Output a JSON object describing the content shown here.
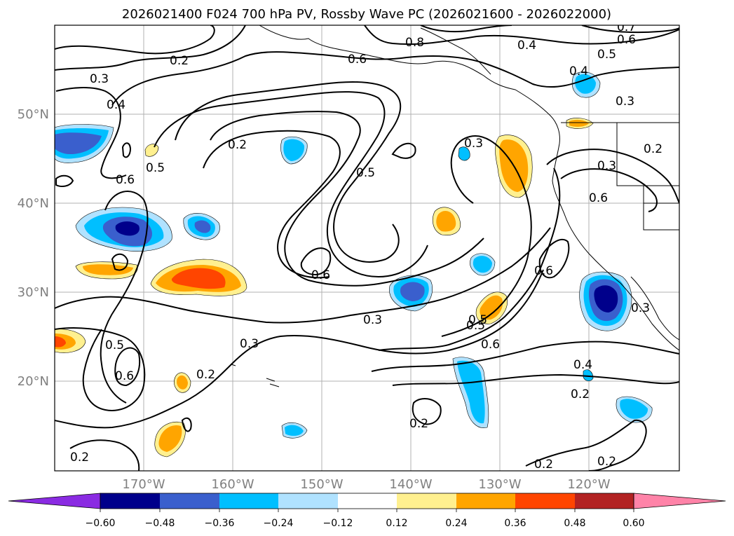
{
  "title": "2026021400 F024 700 hPa PV, Rossby Wave PC (2026021600 - 2026022000)",
  "map": {
    "lon_ticks": [
      "170°W",
      "160°W",
      "150°W",
      "140°W",
      "130°W",
      "120°W"
    ],
    "lat_ticks": [
      "50°N",
      "40°N",
      "30°N",
      "20°N"
    ]
  },
  "colorbar": {
    "colors": [
      "#8a2be2",
      "#00008b",
      "#3a5fcd",
      "#00bfff",
      "#b0e2ff",
      "#ffffff",
      "#fff08f",
      "#ffa500",
      "#ff4500",
      "#b22222",
      "#ff83a8"
    ],
    "labels": [
      "−0.60",
      "−0.48",
      "−0.36",
      "−0.24",
      "−0.12",
      "0.12",
      "0.24",
      "0.36",
      "0.48",
      "0.60"
    ]
  },
  "contour_labels": [
    "0.2",
    "0.3",
    "0.4",
    "0.6",
    "0.8",
    "0.4",
    "0.5",
    "0.6",
    "0.7",
    "0.4",
    "0.3",
    "0.2",
    "0.3",
    "0.2",
    "0.5",
    "0.6",
    "0.5",
    "0.3",
    "0.6",
    "0.6",
    "0.5",
    "0.3",
    "0.3",
    "0.5",
    "0.6",
    "0.6",
    "0.2",
    "0.4",
    "0.2",
    "0.2",
    "0.2",
    "0.2",
    "0.3",
    "0.5",
    "0.6",
    "0.2"
  ]
}
